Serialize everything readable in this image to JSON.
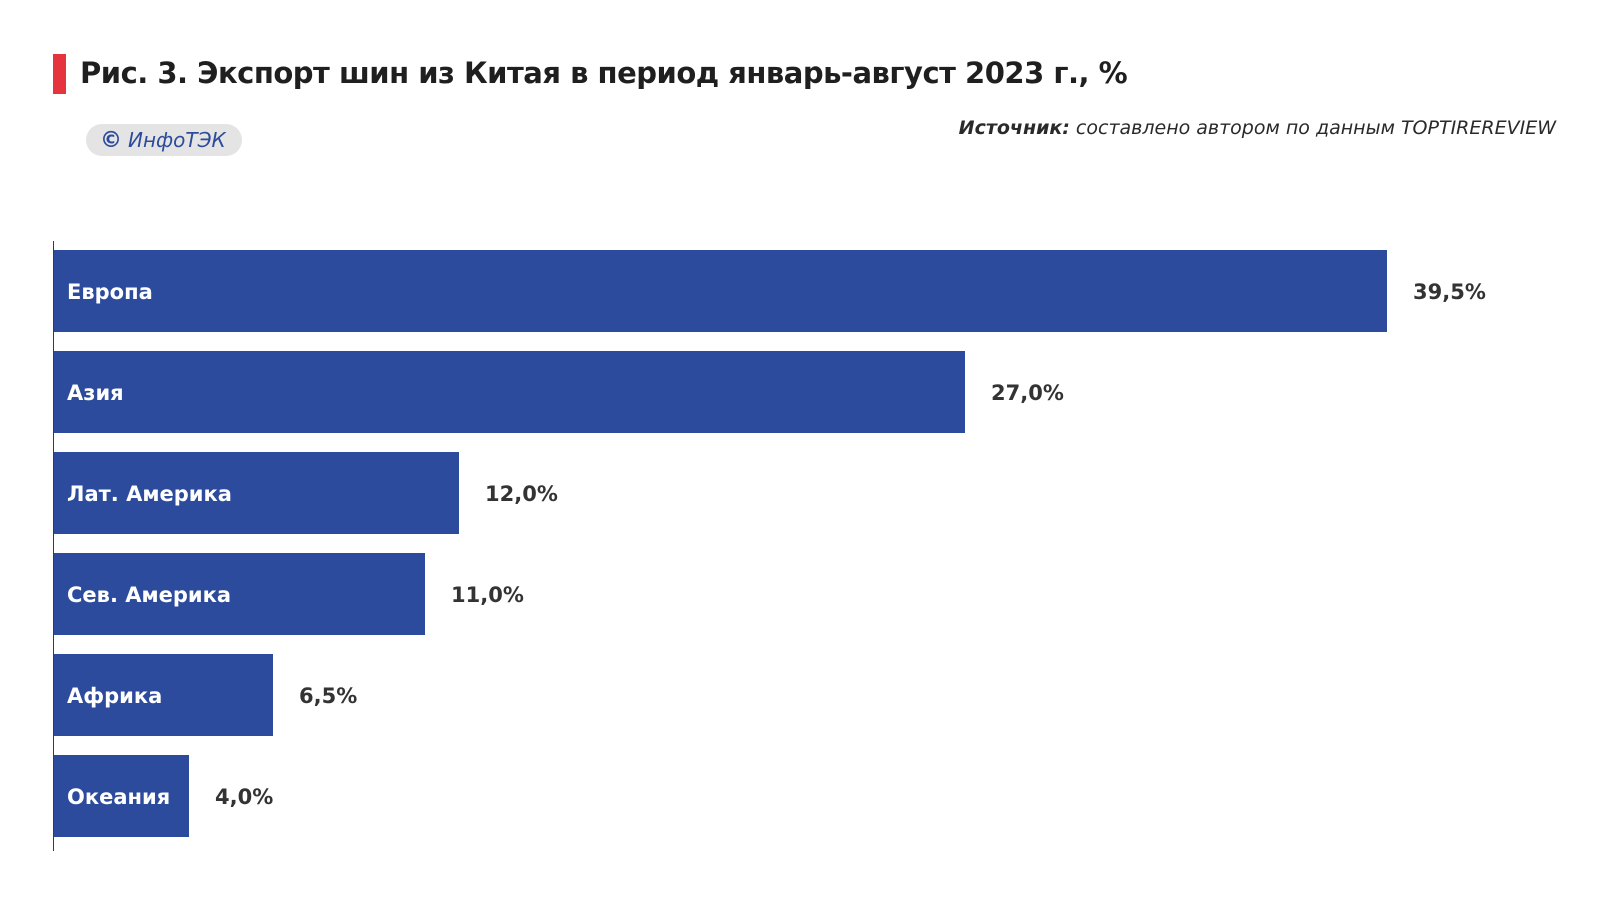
{
  "header": {
    "title": "Рис. 3. Экспорт шин из Китая в период январь-август 2023 г., %",
    "brand_symbol": "©",
    "brand_name": "ИнфоТЭК",
    "source_label": "Источник:",
    "source_text": " составлено автором по данным TOPTIREREVIEW"
  },
  "colors": {
    "bar": "#2d4b9c",
    "accent": "#e5343d",
    "brand_pill": "#e4e4e4"
  },
  "chart_data": {
    "type": "bar",
    "orientation": "horizontal",
    "title": "Рис. 3. Экспорт шин из Китая в период январь-август 2023 г., %",
    "categories": [
      "Европа",
      "Азия",
      "Лат. Америка",
      "Сев. Америка",
      "Африка",
      "Океания"
    ],
    "values": [
      39.5,
      27.0,
      12.0,
      11.0,
      6.5,
      4.0
    ],
    "value_labels": [
      "39,5%",
      "27,0%",
      "12,0%",
      "11,0%",
      "6,5%",
      "4,0%"
    ],
    "unit": "%",
    "xlim": [
      0,
      39.5
    ],
    "grid": false,
    "legend": "none"
  }
}
